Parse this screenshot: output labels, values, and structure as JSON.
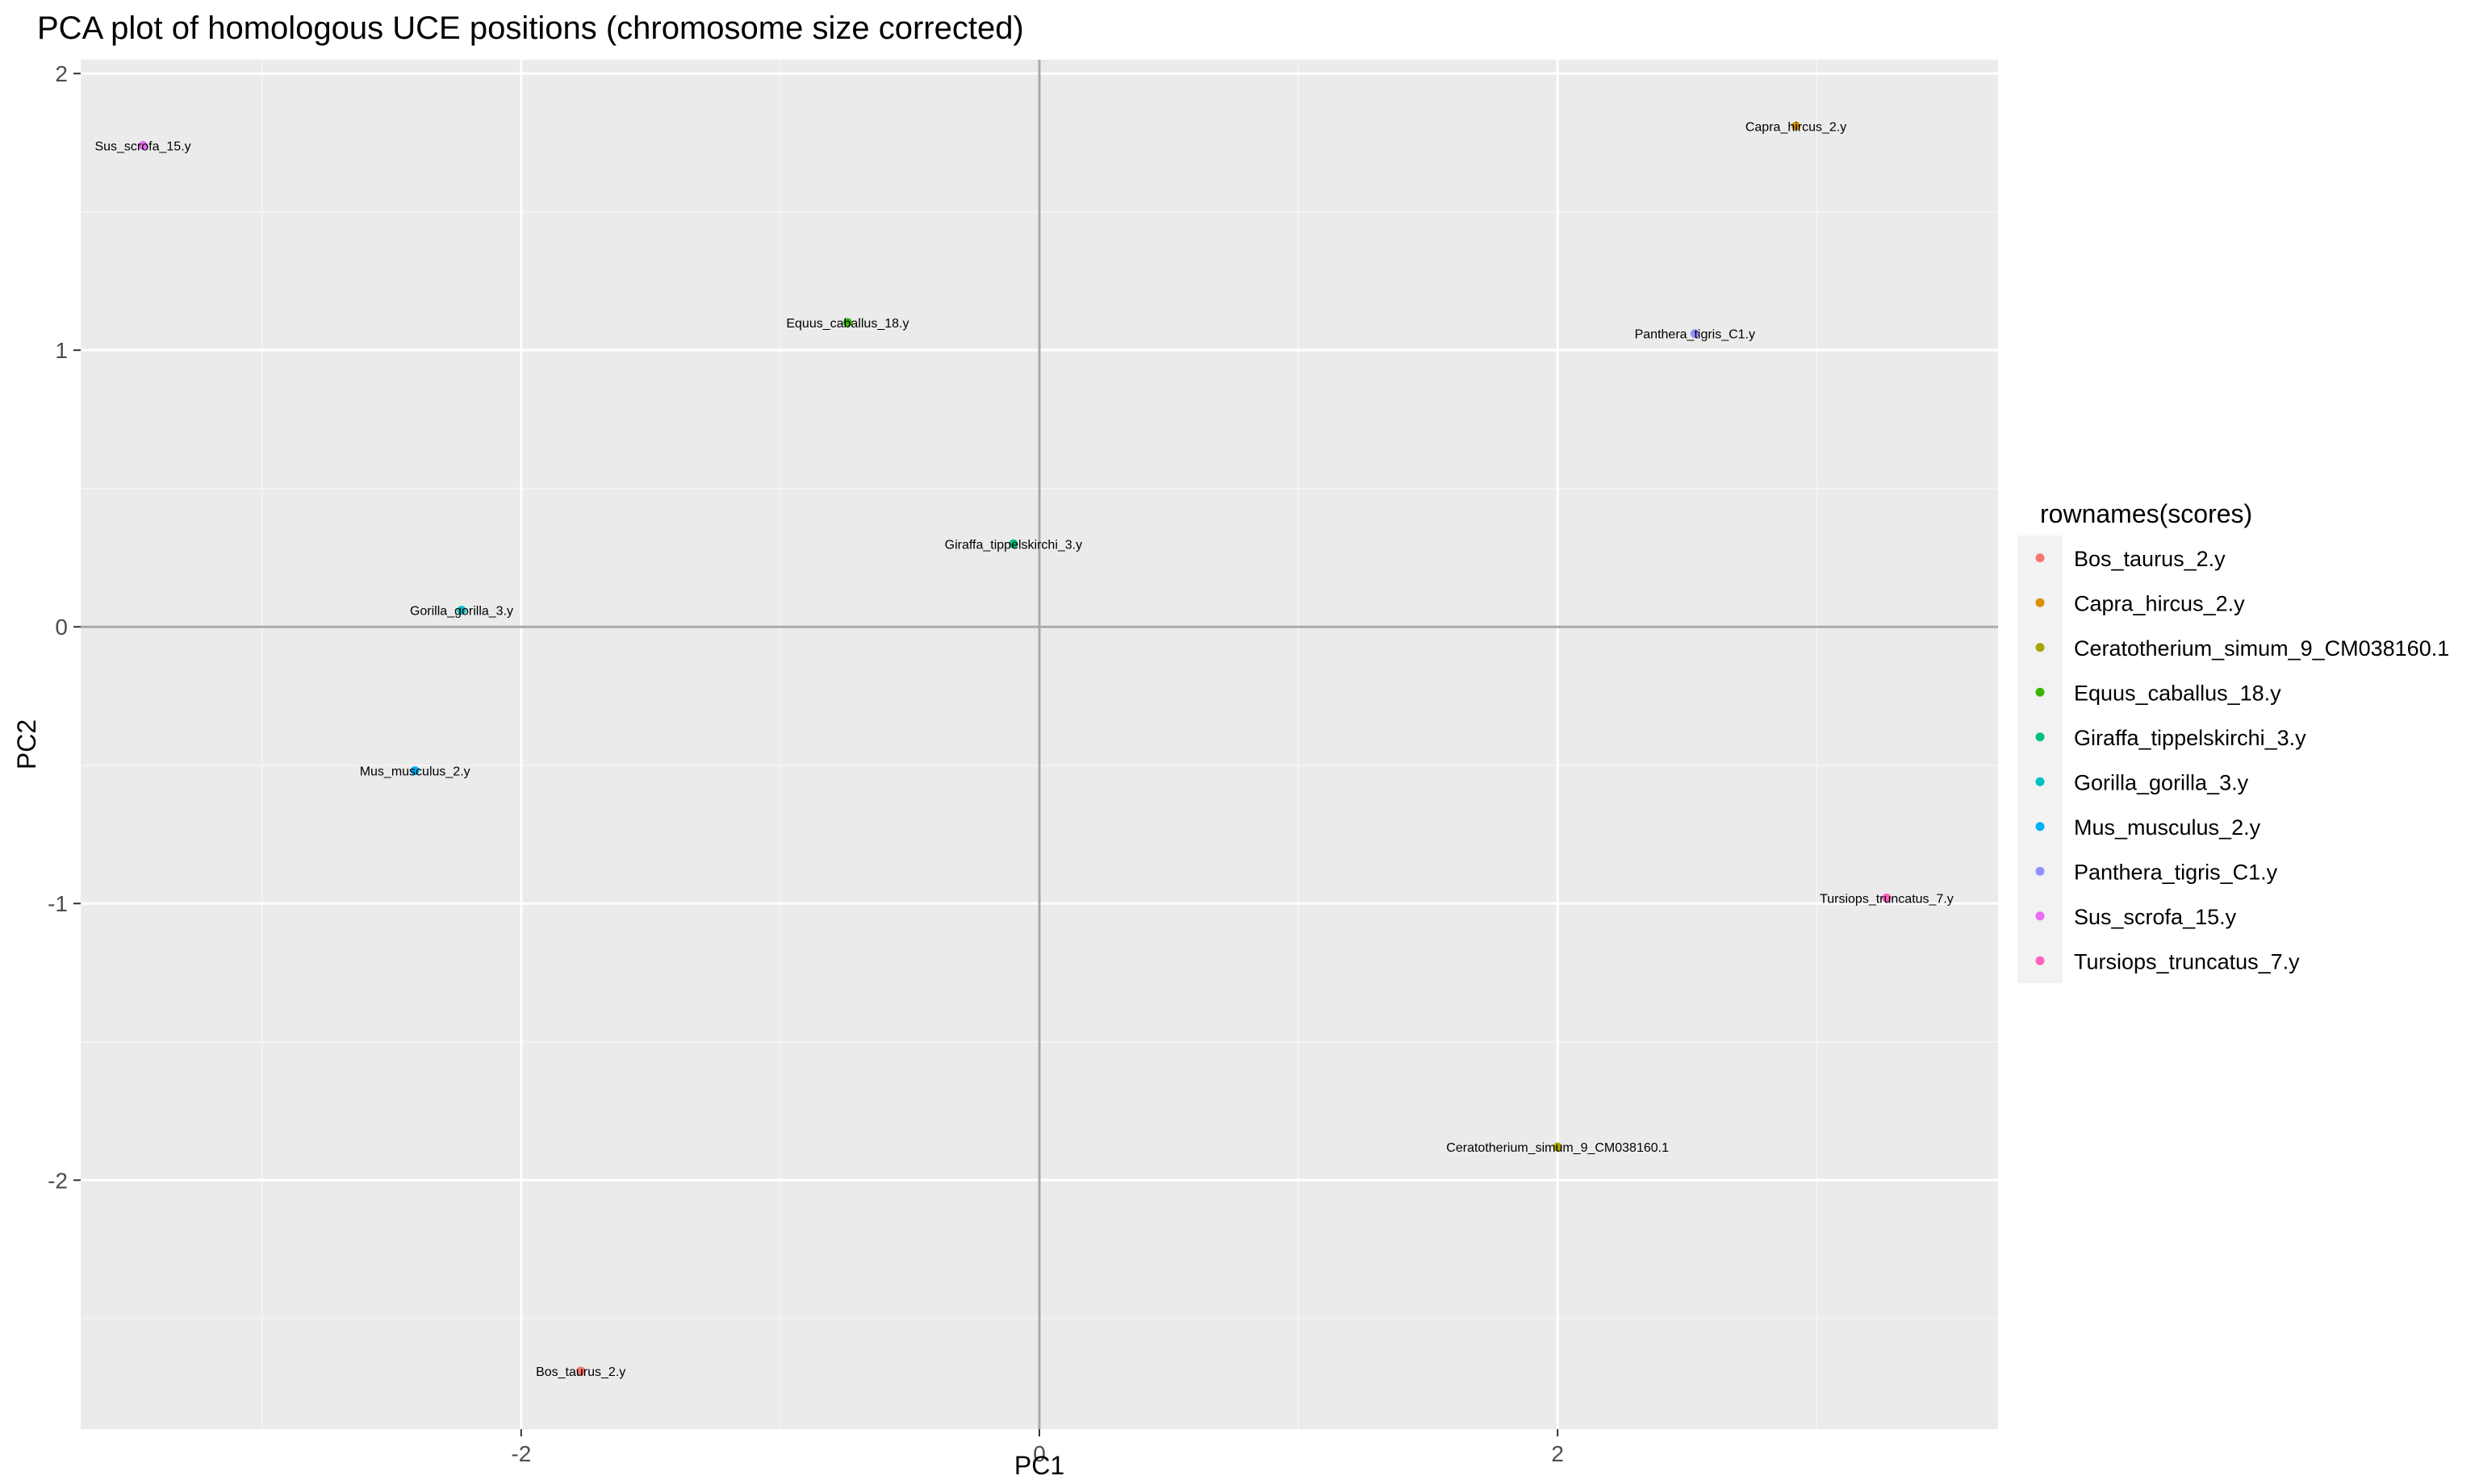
{
  "chart_data": {
    "type": "scatter",
    "title": "PCA plot of homologous UCE positions (chromosome size corrected)",
    "xlabel": "PC1",
    "ylabel": "PC2",
    "xlim": [
      -3.7,
      3.7
    ],
    "ylim": [
      -2.9,
      2.05
    ],
    "x_ticks": [
      -2,
      0,
      2
    ],
    "y_ticks": [
      -2,
      -1,
      0,
      1,
      2
    ],
    "grid": true,
    "reference_lines": {
      "x": 0,
      "y": 0
    },
    "legend": {
      "title": "rownames(scores)",
      "position": "right"
    },
    "series": [
      {
        "name": "Bos_taurus_2.y",
        "x": -1.77,
        "y": -2.69,
        "color": "#F8766D"
      },
      {
        "name": "Capra_hircus_2.y",
        "x": 2.92,
        "y": 1.81,
        "color": "#D89000"
      },
      {
        "name": "Ceratotherium_simum_9_CM038160.1",
        "x": 2.0,
        "y": -1.88,
        "color": "#A3A500"
      },
      {
        "name": "Equus_caballus_18.y",
        "x": -0.74,
        "y": 1.1,
        "color": "#39B600"
      },
      {
        "name": "Giraffa_tippelskirchi_3.y",
        "x": -0.1,
        "y": 0.3,
        "color": "#00BF7D"
      },
      {
        "name": "Gorilla_gorilla_3.y",
        "x": -2.23,
        "y": 0.06,
        "color": "#00BFC4"
      },
      {
        "name": "Mus_musculus_2.y",
        "x": -2.41,
        "y": -0.52,
        "color": "#00B0F6"
      },
      {
        "name": "Panthera_tigris_C1.y",
        "x": 2.53,
        "y": 1.06,
        "color": "#9590FF"
      },
      {
        "name": "Sus_scrofa_15.y",
        "x": -3.46,
        "y": 1.74,
        "color": "#E76BF3"
      },
      {
        "name": "Tursiops_truncatus_7.y",
        "x": 3.27,
        "y": -0.98,
        "color": "#FF62BC"
      }
    ]
  }
}
